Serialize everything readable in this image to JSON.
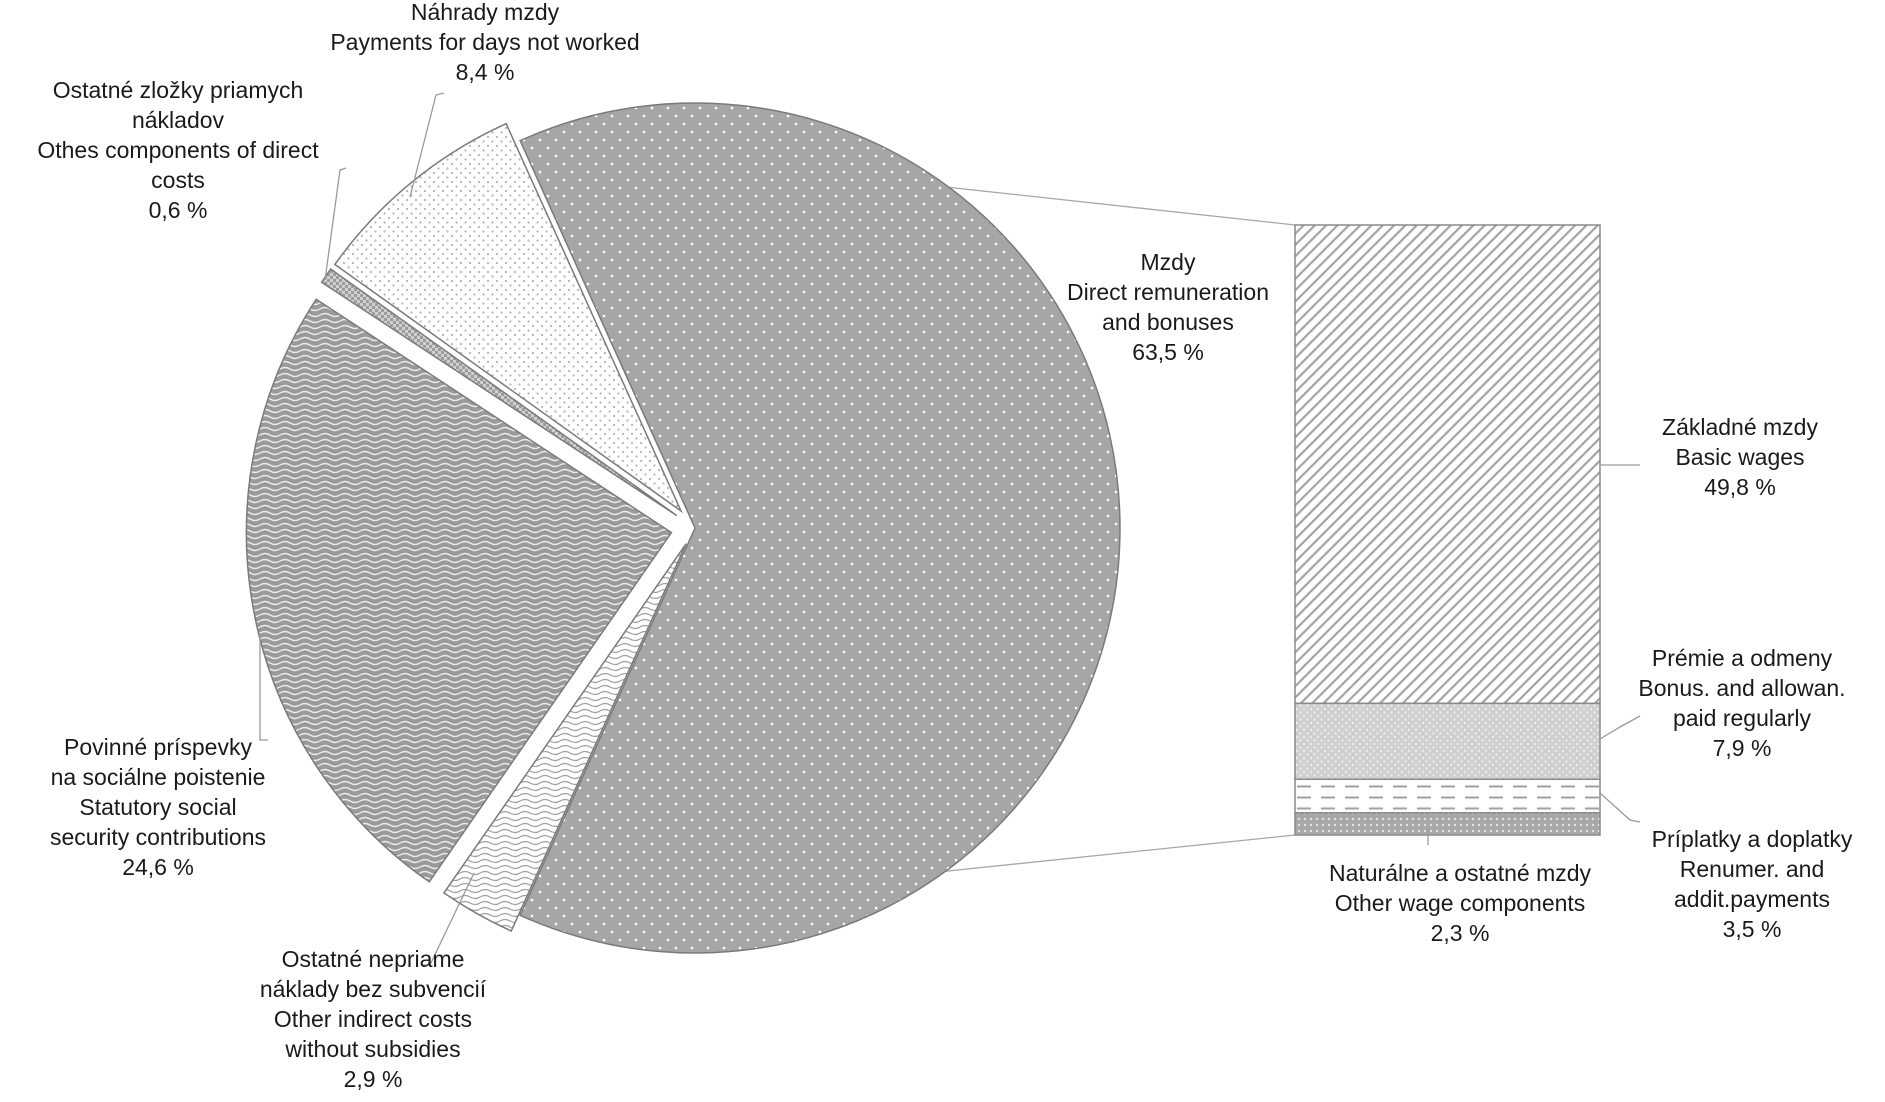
{
  "chart_data": {
    "type": "bar-of-pie",
    "pie": {
      "slices": [
        {
          "key": "mzdy",
          "value": 63.5,
          "lines": [
            "Mzdy",
            "Direct remuneration",
            "and bonuses",
            "63,5 %"
          ]
        },
        {
          "key": "indirect",
          "value": 2.9,
          "lines": [
            "Ostatné nepriame",
            "náklady bez subvencií",
            "Other indirect costs",
            "without subsidies",
            "2,9 %"
          ]
        },
        {
          "key": "social",
          "value": 24.6,
          "lines": [
            "Povinné príspevky",
            "na sociálne poistenie",
            "Statutory social",
            "security contributions",
            "24,6 %"
          ]
        },
        {
          "key": "other_direct",
          "value": 0.6,
          "lines": [
            "Ostatné zložky priamych",
            "nákladov",
            "Othes components of direct",
            "costs",
            "0,6 %"
          ]
        },
        {
          "key": "nahrady",
          "value": 8.4,
          "lines": [
            "Náhrady mzdy",
            "Payments for days not worked",
            "8,4 %"
          ]
        }
      ]
    },
    "bar": {
      "segments": [
        {
          "key": "basic",
          "value": 49.8,
          "lines": [
            "Základné mzdy",
            "Basic wages",
            "49,8 %"
          ]
        },
        {
          "key": "bonus",
          "value": 7.9,
          "lines": [
            "Prémie a odmeny",
            "Bonus. and allowan.",
            "paid regularly",
            "7,9 %"
          ]
        },
        {
          "key": "priplatky",
          "value": 3.5,
          "lines": [
            "Príplatky a doplatky",
            "Renumer. and",
            "addit.payments",
            "3,5 %"
          ]
        },
        {
          "key": "naturalne",
          "value": 2.3,
          "lines": [
            "Naturálne a ostatné mzdy",
            "Other wage components",
            "2,3 %"
          ]
        }
      ]
    },
    "colors": {
      "mzdy": "#a6a6a6",
      "indirect": "#ffffff",
      "social": "#9a9a9a",
      "other_direct": "#c8c8c8",
      "nahrady": "#ffffff",
      "basic": "#ffffff",
      "bonus": "#c8c8c8",
      "priplatky": "#ffffff",
      "naturalne": "#bdbdbd"
    }
  }
}
